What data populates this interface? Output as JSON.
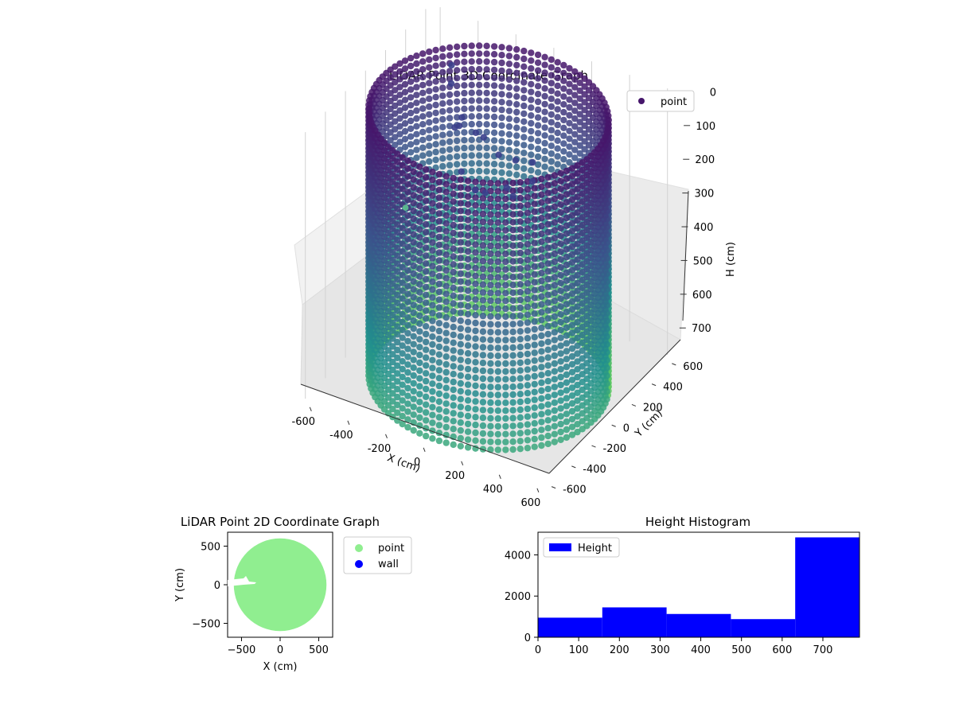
{
  "chart_data": [
    {
      "type": "scatter3d",
      "title": "LiDAR Point 3D Coordinate Graph",
      "xlabel": "X (cm)",
      "ylabel": "Y (cm)",
      "zlabel": "H (cm)",
      "x_ticks": [
        -600,
        -400,
        -200,
        0,
        200,
        400,
        600
      ],
      "y_ticks": [
        -600,
        -400,
        -200,
        0,
        200,
        400,
        600
      ],
      "z_ticks": [
        0,
        100,
        200,
        300,
        400,
        500,
        600,
        700
      ],
      "xlim": [
        -650,
        650
      ],
      "ylim": [
        -650,
        650
      ],
      "zlim": [
        0,
        790
      ],
      "z_inverted": true,
      "legend": [
        {
          "label": "point",
          "color": "#46166b"
        }
      ],
      "legend_position": "top-right",
      "shape": "cylindrical wall",
      "radius": 560,
      "height": 790,
      "colormap": [
        "#46166b",
        "#3b528b",
        "#21908d",
        "#5ec962"
      ]
    },
    {
      "type": "scatter",
      "title": "LiDAR Point 2D Coordinate Graph",
      "xlabel": "X (cm)",
      "ylabel": "Y (cm)",
      "x_ticks": [
        -500,
        0,
        500
      ],
      "y_ticks": [
        -500,
        0,
        500
      ],
      "xlim": [
        -680,
        680
      ],
      "ylim": [
        -680,
        680
      ],
      "series": [
        {
          "name": "point",
          "color": "#90ee90",
          "shape": "disc",
          "radius": 600
        },
        {
          "name": "wall",
          "color": "#0000ff"
        }
      ],
      "legend_position": "outside-right"
    },
    {
      "type": "bar",
      "title": "Height Histogram",
      "xlabel": "",
      "ylabel": "",
      "bins": [
        {
          "start": 0,
          "end": 158,
          "value": 950
        },
        {
          "start": 158,
          "end": 316,
          "value": 1450
        },
        {
          "start": 316,
          "end": 474,
          "value": 1130
        },
        {
          "start": 474,
          "end": 632,
          "value": 880
        },
        {
          "start": 632,
          "end": 790,
          "value": 4850
        }
      ],
      "x_ticks": [
        0,
        100,
        200,
        300,
        400,
        500,
        600,
        700
      ],
      "y_ticks": [
        0,
        2000,
        4000
      ],
      "xlim": [
        0,
        790
      ],
      "ylim": [
        0,
        5100
      ],
      "color": "#0000ff",
      "legend": [
        {
          "label": "Height",
          "color": "#0000ff"
        }
      ],
      "legend_position": "top-left"
    }
  ]
}
